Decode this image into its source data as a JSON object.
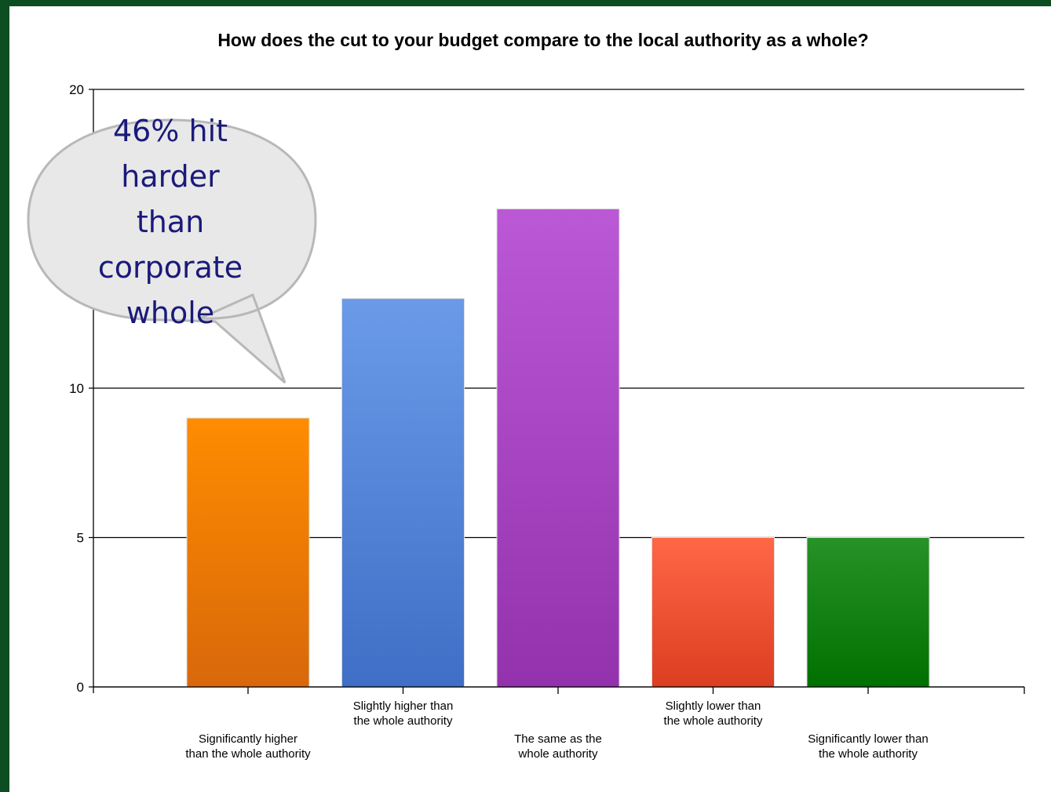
{
  "chart_data": {
    "type": "bar",
    "title": "How does the cut to your budget compare to the local authority as a whole?",
    "categories": [
      [
        "Significantly higher",
        "than the whole authority"
      ],
      [
        "Slightly higher than",
        "the whole authority"
      ],
      [
        "The same as the",
        "whole authority"
      ],
      [
        "Slightly lower than",
        "the whole authority"
      ],
      [
        "Significantly lower than",
        "the whole authority"
      ]
    ],
    "values": [
      9,
      13,
      16,
      5,
      5
    ],
    "colors": [
      [
        "#ff8c00",
        "#d8680a"
      ],
      [
        "#6a9ae8",
        "#3f6fc6"
      ],
      [
        "#bb58d6",
        "#9432ad"
      ],
      [
        "#ff6747",
        "#db3e20"
      ],
      [
        "#279227",
        "#007000"
      ]
    ],
    "yticks": [
      0,
      5,
      10,
      20
    ],
    "ylim": [
      0,
      20
    ],
    "grid": true,
    "xlabel": "",
    "ylabel": ""
  },
  "callout": {
    "lines": [
      "46% hit",
      "harder",
      "than",
      "corporate",
      "whole"
    ]
  }
}
